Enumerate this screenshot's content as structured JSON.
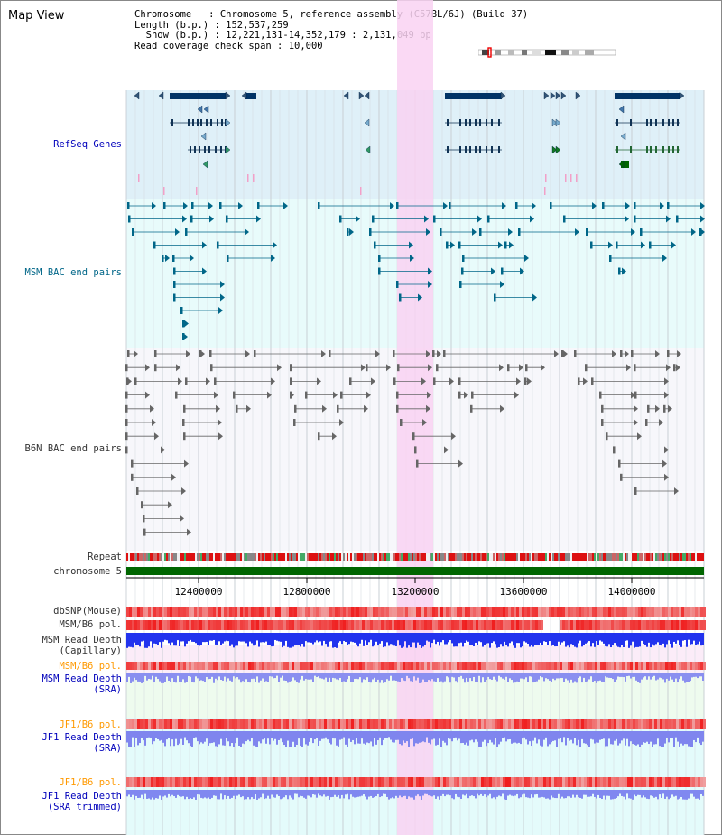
{
  "page": {
    "title": "Map View"
  },
  "info": {
    "chromosome_key": "Chromosome",
    "chromosome_value": "Chromosome 5, reference assembly (C57BL/6J) (Build 37)",
    "length_key": "Length (b.p.)",
    "length_value": "152,537,259",
    "show_key": "Show (b.p.)",
    "show_value": "12,221,131-14,352,179 : 2,131,049 bp",
    "coverage_key": "Read coverage check span",
    "coverage_value": "10,000"
  },
  "tracks": {
    "refseq": "RefSeq Genes",
    "msm_bac": "MSM BAC end pairs",
    "b6n_bac": "B6N BAC end pairs",
    "repeat": "Repeat",
    "chromosome": "chromosome 5",
    "dbsnp": "dbSNP(Mouse)",
    "msm_b6_pol": "MSM/B6 pol.",
    "msm_depth_cap_1": "MSM Read Depth",
    "msm_depth_cap_2": "(Capillary)",
    "msm_b6_pol2": "MSM/B6 pol.",
    "msm_depth_sra_1": "MSM Read Depth",
    "msm_depth_sra_2": "(SRA)",
    "jf1_pol": "JF1/B6 pol.",
    "jf1_depth_1": "JF1 Read Depth",
    "jf1_depth_2": "(SRA)",
    "jf1_pol2": "JF1/B6 pol.",
    "jf1_trim_1": "JF1 Read Depth",
    "jf1_trim_2": "(SRA trimmed)"
  },
  "axis": {
    "ticks": [
      "12400000",
      "12800000",
      "13200000",
      "13600000",
      "14000000"
    ]
  },
  "colors": {
    "refseq_bg": "#dff0f8",
    "msm_bg": "#e8fbfb",
    "b6n_bg": "#f7f7fb",
    "highlight": "#f9d9f4",
    "chromosome_bar": "#006600",
    "gene": "#003366",
    "msm_pair": "#006688",
    "b6n_pair": "#666666",
    "depth": "#2233dd"
  }
}
